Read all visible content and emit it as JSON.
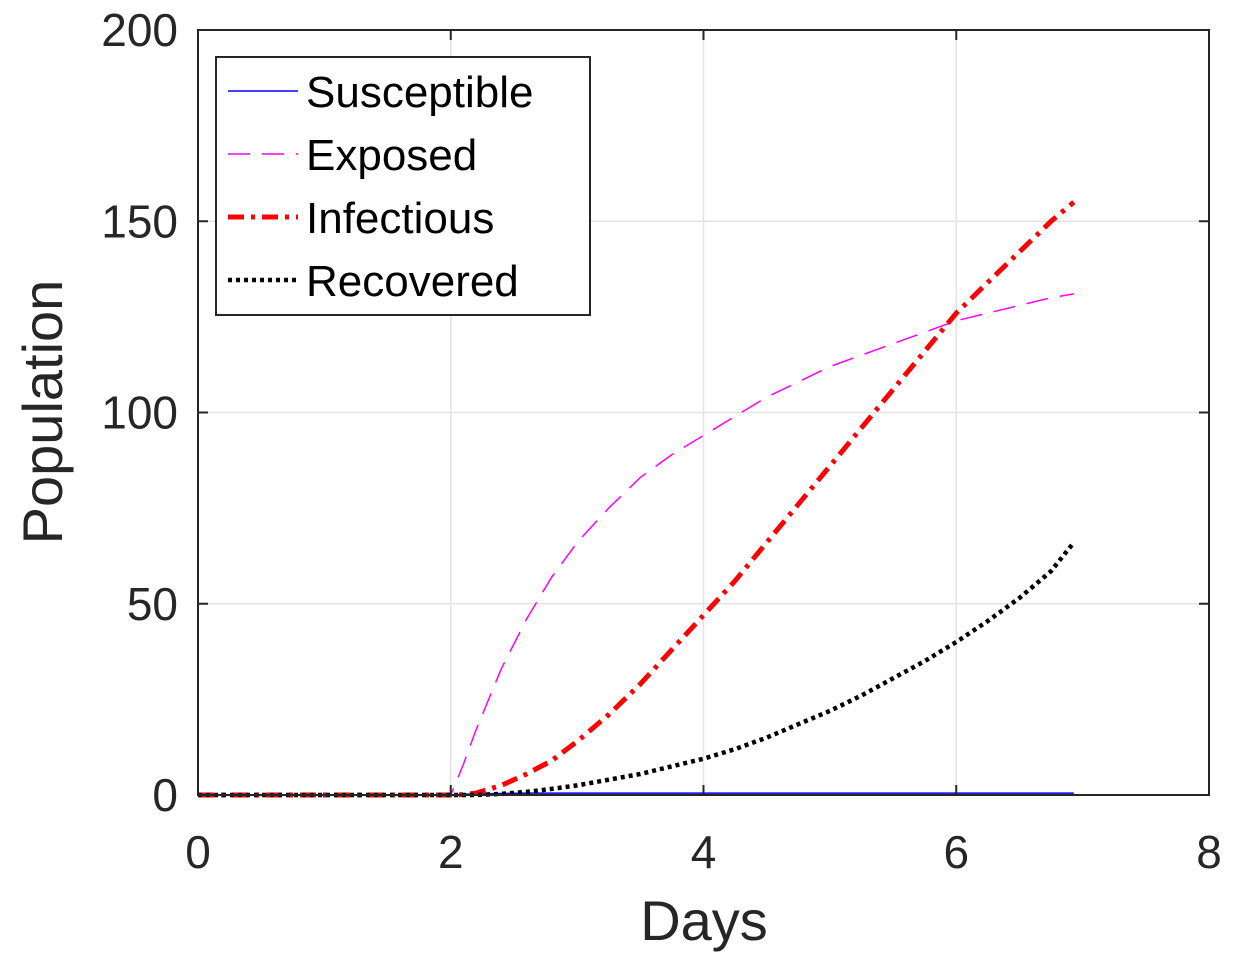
{
  "chart_data": {
    "type": "line",
    "xlabel": "Days",
    "ylabel": "Population",
    "xlim": [
      0,
      8
    ],
    "ylim": [
      0,
      200
    ],
    "xticks": [
      "0",
      "2",
      "4",
      "6",
      "8"
    ],
    "yticks": [
      "0",
      "50",
      "100",
      "150",
      "200"
    ],
    "grid": true,
    "legend_position": "top-left",
    "x": [
      0,
      0.5,
      1,
      1.5,
      2,
      2.1,
      2.2,
      2.4,
      2.6,
      2.8,
      3,
      3.25,
      3.5,
      3.75,
      4,
      4.25,
      4.5,
      4.75,
      5,
      5.25,
      5.5,
      5.75,
      6,
      6.25,
      6.5,
      6.75,
      6.93
    ],
    "series": [
      {
        "name": "Susceptible",
        "color": "#0000ff",
        "style": "solid",
        "values": [
          0,
          0,
          0,
          0,
          0,
          0.2,
          0.3,
          0.4,
          0.5,
          0.5,
          0.5,
          0.5,
          0.5,
          0.5,
          0.5,
          0.5,
          0.5,
          0.5,
          0.5,
          0.5,
          0.5,
          0.5,
          0.5,
          0.5,
          0.5,
          0.5,
          0.5
        ]
      },
      {
        "name": "Exposed",
        "color": "#ff00ff",
        "style": "dashed",
        "values": [
          0,
          0,
          0,
          0,
          0,
          8,
          17,
          33,
          46,
          57,
          66,
          75,
          83,
          89,
          94,
          99,
          104,
          108,
          112,
          115,
          118,
          121,
          124,
          126,
          128,
          130,
          131
        ]
      },
      {
        "name": "Infectious",
        "color": "#ff0000",
        "style": "dashdot",
        "values": [
          0,
          0,
          0,
          0,
          0,
          0.1,
          0.5,
          2.5,
          5.5,
          9,
          14,
          21,
          29,
          38,
          47,
          56,
          66,
          76,
          86,
          96,
          106,
          116,
          126,
          134,
          142,
          150,
          155
        ]
      },
      {
        "name": "Recovered",
        "color": "#000000",
        "style": "dotted",
        "values": [
          0,
          0,
          0,
          0,
          0,
          0,
          0,
          0.3,
          0.8,
          1.6,
          2.5,
          4,
          5.5,
          7.5,
          9.5,
          12,
          15,
          18.5,
          22,
          26,
          30.5,
          35,
          40,
          45.5,
          51.5,
          58.5,
          66
        ]
      }
    ]
  }
}
